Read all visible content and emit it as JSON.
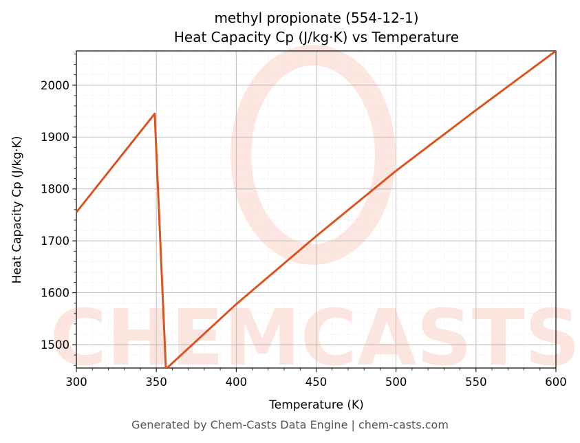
{
  "chart_data": {
    "type": "line",
    "title_line1": "methyl propionate (554-12-1)",
    "title_line2": "Heat Capacity Cp (J/kg·K) vs Temperature",
    "xlabel": "Temperature (K)",
    "ylabel": "Heat Capacity Cp (J/kg·K)",
    "xlim": [
      300,
      600
    ],
    "ylim": [
      1455,
      2066
    ],
    "x_ticks": [
      300,
      350,
      400,
      450,
      500,
      550,
      600
    ],
    "y_ticks": [
      1500,
      1600,
      1700,
      1800,
      1900,
      2000
    ],
    "grid": true,
    "series": [
      {
        "color": "#d9541e",
        "x": [
          300,
          349,
          356,
          400,
          450,
          500,
          550,
          600
        ],
        "y": [
          1755,
          1945,
          1453,
          1578,
          1709,
          1835,
          1952,
          2066
        ]
      }
    ]
  },
  "watermark": "CHEMCASTS",
  "footer": "Generated by Chem-Casts Data Engine | chem-casts.com"
}
